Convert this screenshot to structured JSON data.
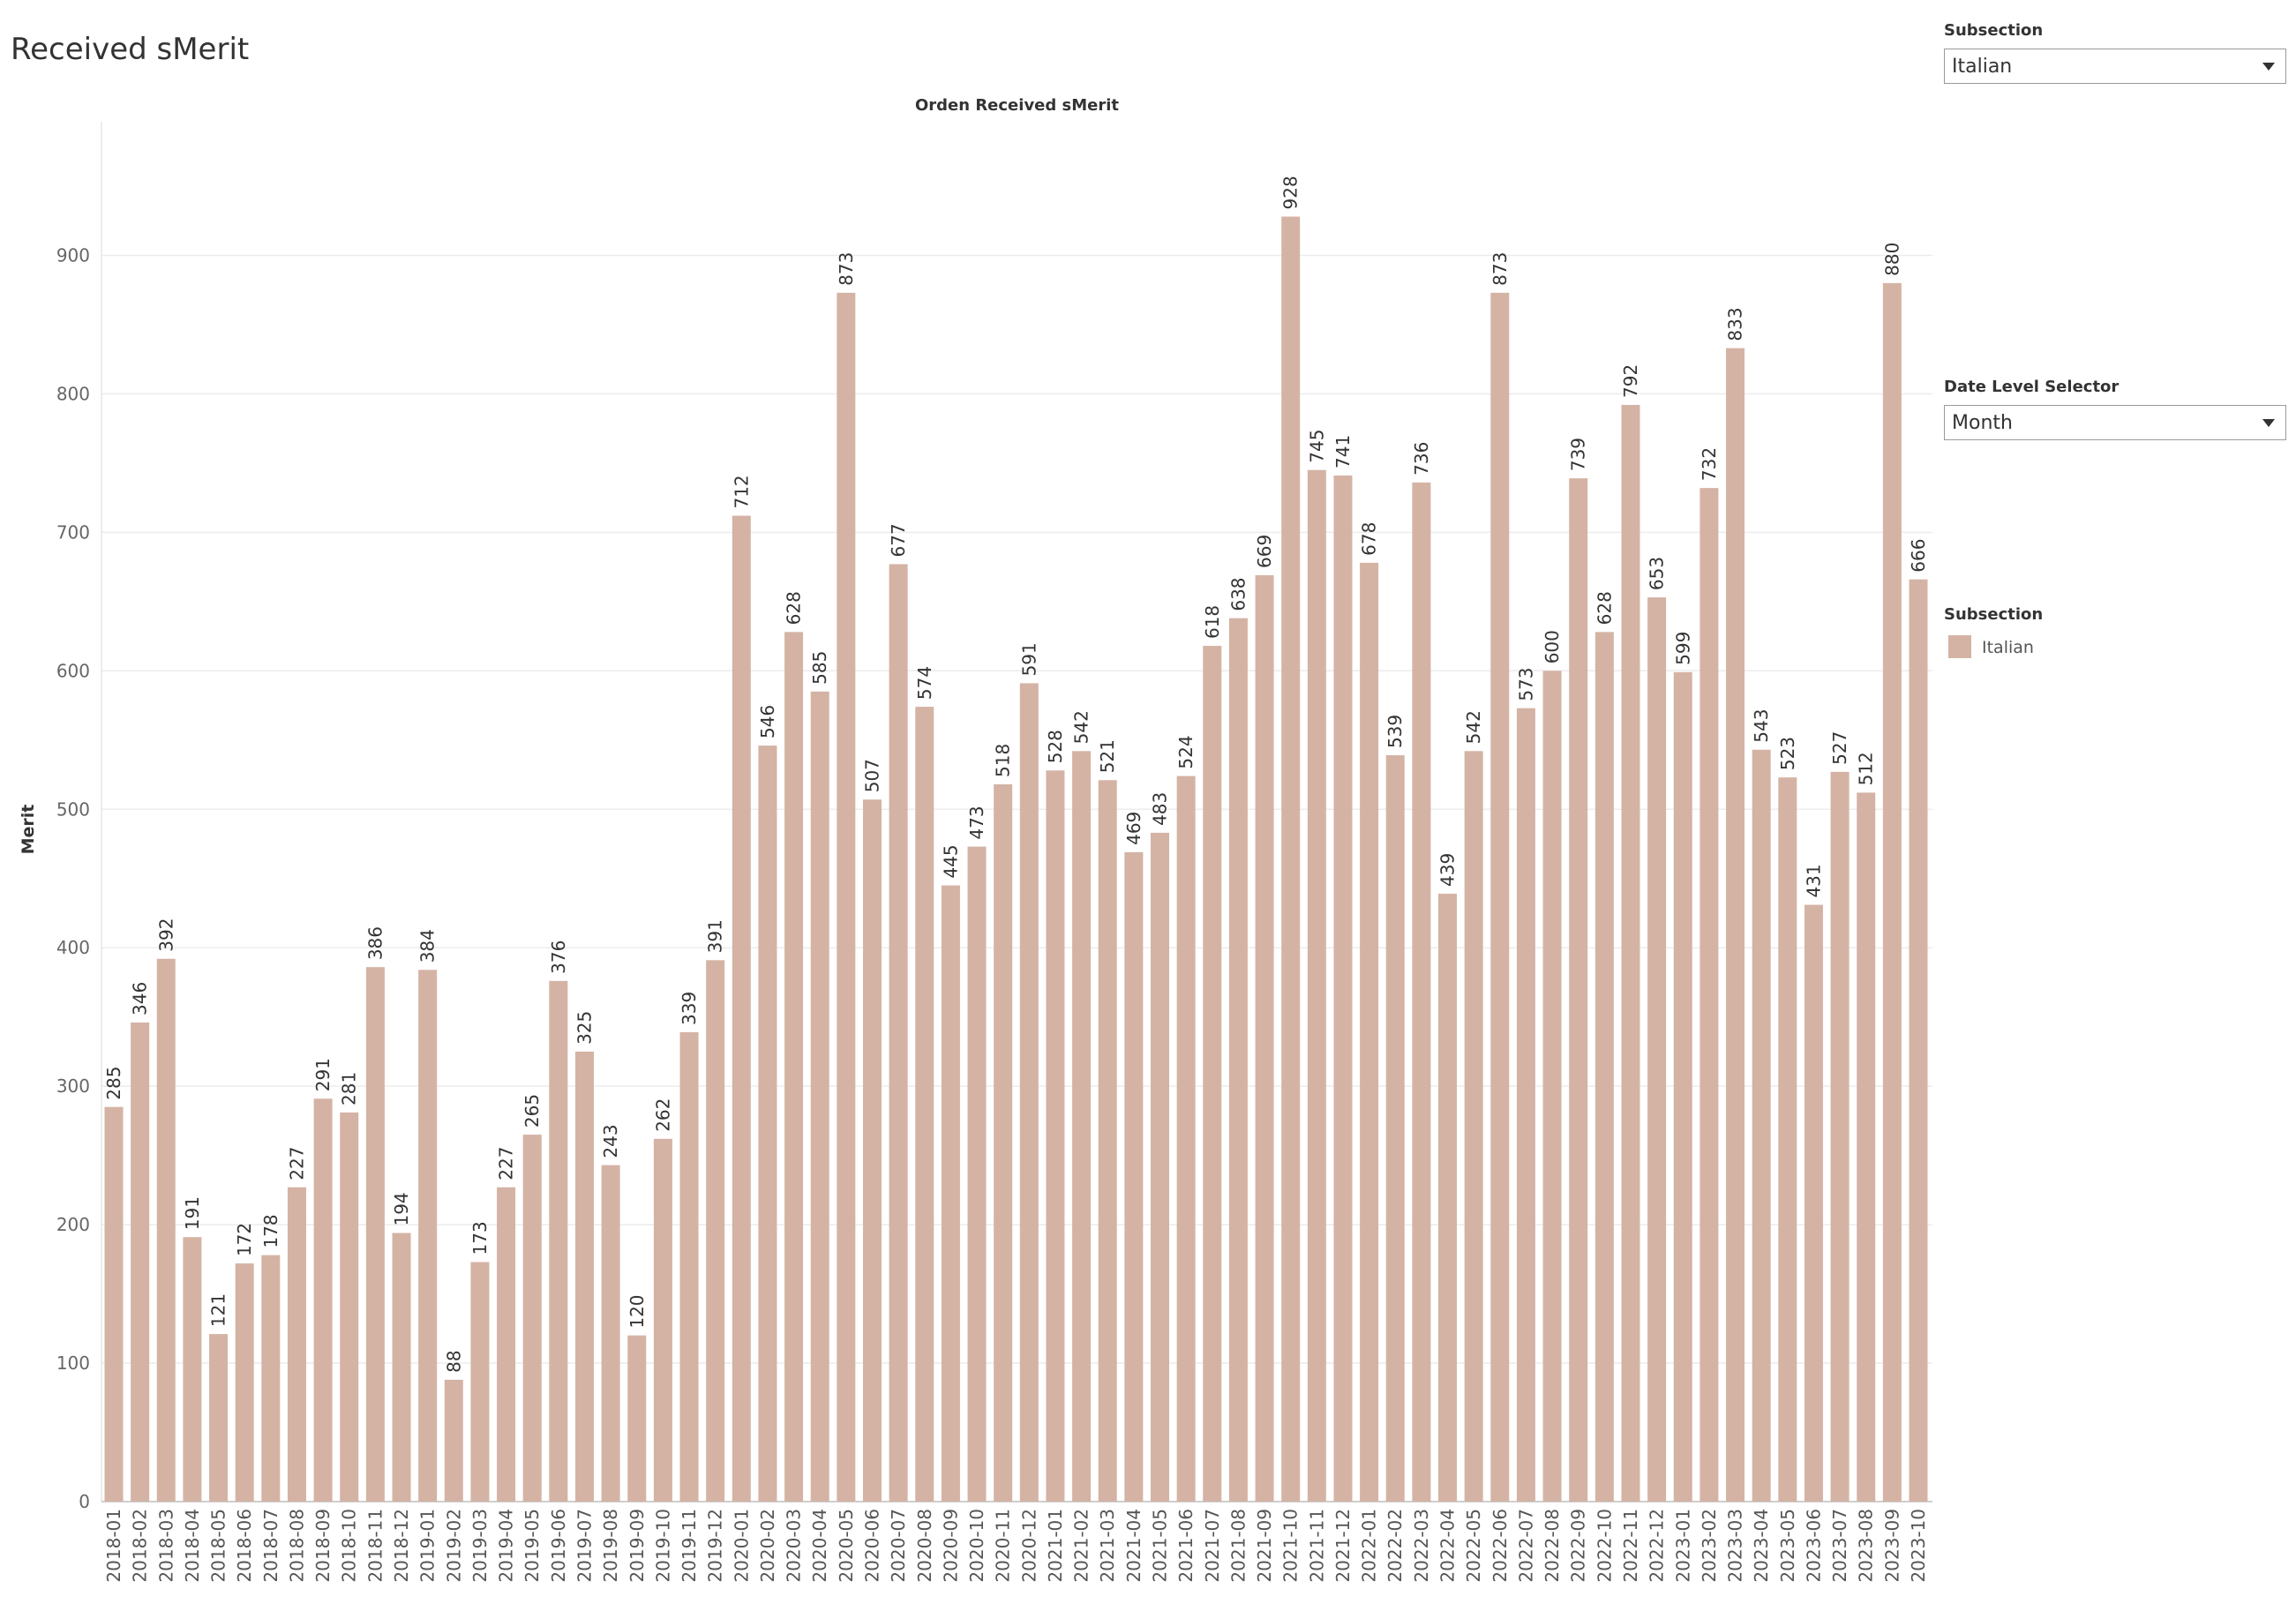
{
  "page_title": "Received sMerit",
  "filters": {
    "subsection": {
      "label": "Subsection",
      "value": "Italian"
    },
    "date_level": {
      "label": "Date Level Selector",
      "value": "Month"
    }
  },
  "legend": {
    "title": "Subsection",
    "items": [
      {
        "name": "Italian",
        "color": "#d4b3a5"
      }
    ]
  },
  "chart_data": {
    "type": "bar",
    "title": "Orden Received sMerit",
    "xlabel": "",
    "ylabel": "Merit",
    "ylim": [
      0,
      980
    ],
    "yticks": [
      0,
      100,
      200,
      300,
      400,
      500,
      600,
      700,
      800,
      900
    ],
    "grid": true,
    "bar_color": "#d4b3a5",
    "categories": [
      "2018-01",
      "2018-02",
      "2018-03",
      "2018-04",
      "2018-05",
      "2018-06",
      "2018-07",
      "2018-08",
      "2018-09",
      "2018-10",
      "2018-11",
      "2018-12",
      "2019-01",
      "2019-02",
      "2019-03",
      "2019-04",
      "2019-05",
      "2019-06",
      "2019-07",
      "2019-08",
      "2019-09",
      "2019-10",
      "2019-11",
      "2019-12",
      "2020-01",
      "2020-02",
      "2020-03",
      "2020-04",
      "2020-05",
      "2020-06",
      "2020-07",
      "2020-08",
      "2020-09",
      "2020-10",
      "2020-11",
      "2020-12",
      "2021-01",
      "2021-02",
      "2021-03",
      "2021-04",
      "2021-05",
      "2021-06",
      "2021-07",
      "2021-08",
      "2021-09",
      "2021-10",
      "2021-11",
      "2021-12",
      "2022-01",
      "2022-02",
      "2022-03",
      "2022-04",
      "2022-05",
      "2022-06",
      "2022-07",
      "2022-08",
      "2022-09",
      "2022-10",
      "2022-11",
      "2022-12",
      "2023-01",
      "2023-02",
      "2023-03",
      "2023-04",
      "2023-05",
      "2023-06",
      "2023-07",
      "2023-08",
      "2023-09",
      "2023-10"
    ],
    "values": [
      285,
      346,
      392,
      191,
      121,
      172,
      178,
      227,
      291,
      281,
      386,
      194,
      384,
      88,
      173,
      227,
      265,
      376,
      325,
      243,
      120,
      262,
      339,
      391,
      712,
      546,
      628,
      585,
      873,
      507,
      677,
      574,
      445,
      473,
      518,
      591,
      528,
      542,
      521,
      469,
      483,
      524,
      618,
      638,
      669,
      928,
      745,
      741,
      678,
      539,
      736,
      439,
      542,
      873,
      573,
      600,
      739,
      628,
      792,
      653,
      599,
      732,
      833,
      543,
      523,
      431,
      527,
      512,
      880,
      666
    ]
  }
}
